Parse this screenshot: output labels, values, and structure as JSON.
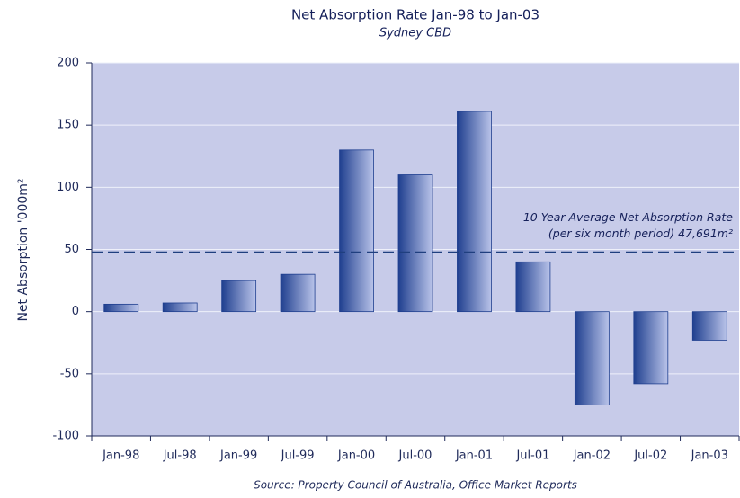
{
  "chart_data": {
    "type": "bar",
    "title": "Net Absorption Rate Jan-98 to Jan-03",
    "subtitle": "Sydney CBD",
    "y_label": "Net Absorption '000m²",
    "source": "Source: Property Council of Australia, Office Market Reports",
    "categories": [
      "Jan-98",
      "Jul-98",
      "Jan-99",
      "Jul-99",
      "Jan-00",
      "Jul-00",
      "Jan-01",
      "Jul-01",
      "Jan-02",
      "Jul-02",
      "Jan-03"
    ],
    "values": [
      6,
      7,
      25,
      30,
      130,
      110,
      161,
      40,
      -75,
      -58,
      -23
    ],
    "color": "#1f3f8f",
    "ylim": [
      -100,
      200
    ],
    "yticks": [
      -100,
      -50,
      0,
      50,
      100,
      150,
      200
    ],
    "grid": true,
    "average": {
      "value": 47.691,
      "label_line1": "10 Year Average Net Absorption Rate",
      "label_line2": "(per six month period) 47,691m²",
      "color": "#1f3f7f"
    }
  }
}
